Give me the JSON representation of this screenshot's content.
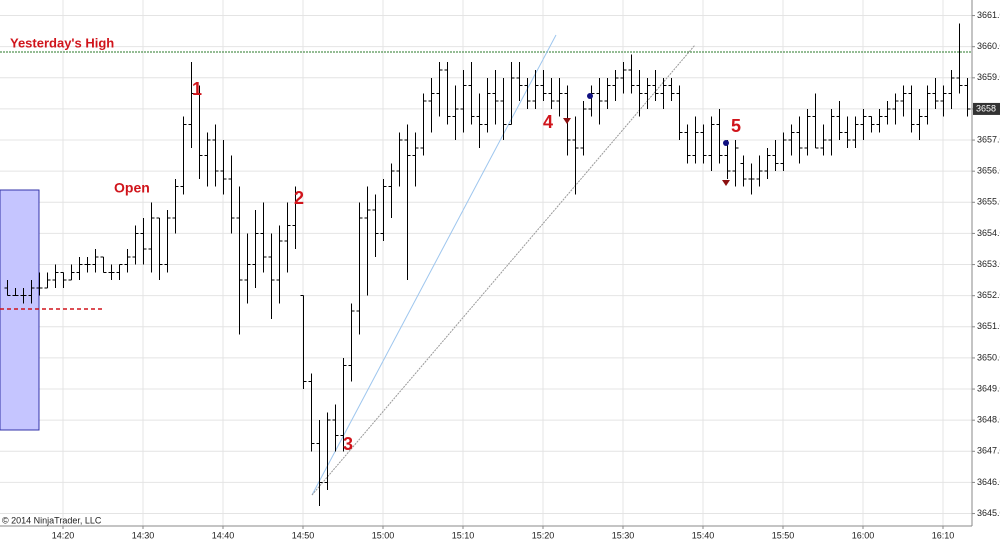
{
  "chart_data": {
    "type": "ohlc",
    "color": "#000000",
    "grid": true,
    "ylim": [
      3644.6,
      3661.5
    ],
    "yticks": [
      {
        "value": 3645,
        "label": "3645.0"
      },
      {
        "value": 3646,
        "label": "3646.0"
      },
      {
        "value": 3647,
        "label": "3647.0"
      },
      {
        "value": 3648,
        "label": "3648.0"
      },
      {
        "value": 3649,
        "label": "3649.0"
      },
      {
        "value": 3650,
        "label": "3650.0"
      },
      {
        "value": 3651,
        "label": "3651.0"
      },
      {
        "value": 3652,
        "label": "3652.0"
      },
      {
        "value": 3653,
        "label": "3653.0"
      },
      {
        "value": 3654,
        "label": "3654.0"
      },
      {
        "value": 3655,
        "label": "3655.0"
      },
      {
        "value": 3656,
        "label": "3656.0"
      },
      {
        "value": 3657,
        "label": "3657.0"
      },
      {
        "value": 3658,
        "label": "3658.0"
      },
      {
        "value": 3659,
        "label": "3659.0"
      },
      {
        "value": 3660,
        "label": "3660.0"
      },
      {
        "value": 3661,
        "label": "3661.0"
      }
    ],
    "xticks": [
      "14:20",
      "14:30",
      "14:40",
      "14:50",
      "15:00",
      "15:10",
      "15:20",
      "15:30",
      "15:40",
      "15:50",
      "16:00",
      "16:10"
    ],
    "last_price": 3658,
    "annotations": [
      "Yesterday's High",
      "Open",
      "1",
      "2",
      "3",
      "4",
      "5"
    ],
    "copyright": "© 2014 NinjaTrader, LLC",
    "x": [
      "14:13",
      "14:14",
      "14:15",
      "14:16",
      "14:17",
      "14:18",
      "14:19",
      "14:20",
      "14:21",
      "14:22",
      "14:23",
      "14:24",
      "14:25",
      "14:26",
      "14:27",
      "14:28",
      "14:29",
      "14:30",
      "14:31",
      "14:32",
      "14:33",
      "14:34",
      "14:35",
      "14:36",
      "14:37",
      "14:38",
      "14:39",
      "14:40",
      "14:41",
      "14:42",
      "14:43",
      "14:44",
      "14:45",
      "14:46",
      "14:47",
      "14:48",
      "14:49",
      "14:50",
      "14:51",
      "14:52",
      "14:53",
      "14:54",
      "14:55",
      "14:56",
      "14:57",
      "14:58",
      "14:59",
      "15:00",
      "15:01",
      "15:02",
      "15:03",
      "15:04",
      "15:05",
      "15:06",
      "15:07",
      "15:08",
      "15:09",
      "15:10",
      "15:11",
      "15:12",
      "15:13",
      "15:14",
      "15:15",
      "15:16",
      "15:17",
      "15:18",
      "15:19",
      "15:20",
      "15:21",
      "15:22",
      "15:23",
      "15:24",
      "15:25",
      "15:26",
      "15:27",
      "15:28",
      "15:29",
      "15:30",
      "15:31",
      "15:32",
      "15:33",
      "15:34",
      "15:35",
      "15:36",
      "15:37",
      "15:38",
      "15:39",
      "15:40",
      "15:41",
      "15:42",
      "15:43",
      "15:44",
      "15:45",
      "15:46",
      "15:47",
      "15:48",
      "15:49",
      "15:50",
      "15:51",
      "15:52",
      "15:53",
      "15:54",
      "15:55",
      "15:56",
      "15:57",
      "15:58",
      "15:59",
      "16:00",
      "16:01",
      "16:02",
      "16:03",
      "16:04",
      "16:05",
      "16:06",
      "16:07",
      "16:08",
      "16:09",
      "16:10",
      "16:11",
      "16:12",
      "16:13"
    ],
    "open": [
      3652.25,
      3652,
      3652,
      3652,
      3652.25,
      3652.25,
      3652.5,
      3652.75,
      3652.5,
      3652.75,
      3653,
      3653,
      3653.25,
      3652.75,
      3652.75,
      3653,
      3653.25,
      3654,
      3653.5,
      3654.5,
      3653,
      3654.5,
      3655.5,
      3657.5,
      3658.5,
      3656.5,
      3657,
      3656,
      3655.75,
      3654.5,
      3652.5,
      3653,
      3654,
      3653.25,
      3652.5,
      3653.75,
      3654.25,
      3652,
      3649.25,
      3647.25,
      3646,
      3648,
      3647.5,
      3649.75,
      3651.5,
      3654.5,
      3654.75,
      3654,
      3655.5,
      3656,
      3657,
      3656.5,
      3656.75,
      3658.25,
      3658.5,
      3659.25,
      3657.75,
      3658,
      3658.75,
      3657.75,
      3657.5,
      3658.5,
      3658.25,
      3657.5,
      3659,
      3658.75,
      3658.25,
      3658.75,
      3658.5,
      3658.25,
      3658.5,
      3657,
      3656.75,
      3658,
      3658.5,
      3658.25,
      3658.75,
      3659,
      3659.25,
      3658.75,
      3658.5,
      3658.75,
      3658.5,
      3658.75,
      3658.5,
      3657.25,
      3656.5,
      3657.25,
      3656.5,
      3657.5,
      3656.5,
      3656,
      3656.25,
      3655.75,
      3655.75,
      3656,
      3656.5,
      3656.25,
      3657,
      3657.25,
      3656.75,
      3657.75,
      3656.75,
      3657,
      3657.75,
      3657.25,
      3657,
      3657.5,
      3657.75,
      3657.5,
      3657.75,
      3658,
      3658.25,
      3658.5,
      3657.5,
      3657.75,
      3658.5,
      3658.25,
      3658.5,
      3659,
      3658.75
    ],
    "high": [
      3652.5,
      3652.25,
      3652.25,
      3652.5,
      3652.75,
      3652.75,
      3653,
      3652.75,
      3653,
      3653.25,
      3653.25,
      3653.5,
      3653.25,
      3653,
      3653,
      3653.5,
      3654.25,
      3654.5,
      3655,
      3654.5,
      3654.75,
      3655.75,
      3657.75,
      3659.5,
      3658.75,
      3657.25,
      3657.5,
      3657,
      3656.5,
      3655.5,
      3654,
      3654.75,
      3655,
      3654,
      3654.25,
      3655,
      3655.5,
      3652,
      3649.5,
      3648,
      3648.25,
      3648.5,
      3650,
      3651.75,
      3655,
      3655.5,
      3655.25,
      3655.75,
      3656.25,
      3657.25,
      3657.5,
      3657.25,
      3658.5,
      3659,
      3659.5,
      3659.5,
      3658.75,
      3659.25,
      3659.5,
      3658.5,
      3659,
      3659.25,
      3659,
      3659.5,
      3659.5,
      3659,
      3659.25,
      3659.25,
      3659,
      3659,
      3658.75,
      3657.75,
      3658.25,
      3658.75,
      3659,
      3659,
      3659.25,
      3659.5,
      3659.75,
      3659.25,
      3659,
      3659.25,
      3659,
      3659,
      3658.75,
      3657.5,
      3657.75,
      3657.5,
      3657.75,
      3658,
      3657,
      3657,
      3656.5,
      3656.25,
      3656.5,
      3656.75,
      3657,
      3657.25,
      3657.5,
      3657.75,
      3658,
      3658.5,
      3657.5,
      3658,
      3658.25,
      3657.75,
      3657.75,
      3658,
      3657.75,
      3658,
      3658.25,
      3658.5,
      3658.75,
      3658.75,
      3658,
      3658.75,
      3659,
      3658.75,
      3659.25,
      3660.75,
      3659
    ],
    "low": [
      3652,
      3652,
      3651.75,
      3651.75,
      3652,
      3652.25,
      3652.25,
      3652.25,
      3652.5,
      3652.5,
      3652.75,
      3652.75,
      3652.75,
      3652.5,
      3652.5,
      3652.75,
      3653,
      3653,
      3652.75,
      3652.5,
      3652.75,
      3654,
      3655.25,
      3656.75,
      3655.75,
      3655.5,
      3655.5,
      3655.25,
      3654,
      3650.75,
      3651.75,
      3652.25,
      3652.75,
      3651.25,
      3651.75,
      3652.75,
      3653.5,
      3649,
      3647,
      3645.25,
      3645.75,
      3647,
      3647,
      3649.25,
      3650.75,
      3652,
      3653.25,
      3653.75,
      3654.5,
      3655.5,
      3652.5,
      3655.5,
      3656.5,
      3657.25,
      3657.75,
      3657.5,
      3657,
      3657.25,
      3657.5,
      3656.75,
      3657.25,
      3657.5,
      3657,
      3657.5,
      3658.25,
      3658,
      3658,
      3658.25,
      3658,
      3657.75,
      3656.5,
      3655.25,
      3656.5,
      3657.75,
      3657.5,
      3658,
      3658.25,
      3658.5,
      3658.5,
      3657.75,
      3658,
      3658.25,
      3658,
      3658.25,
      3657,
      3656.25,
      3656.25,
      3656.25,
      3656,
      3656.25,
      3655.75,
      3655.5,
      3655.5,
      3655.25,
      3655.5,
      3655.75,
      3656,
      3656,
      3656.5,
      3656.25,
      3656.5,
      3656.75,
      3656.5,
      3656.5,
      3657,
      3656.75,
      3656.75,
      3657,
      3657.25,
      3657.25,
      3657.5,
      3657.5,
      3657.75,
      3657.25,
      3657,
      3657.5,
      3658,
      3657.75,
      3658,
      3658.5,
      3657.75
    ],
    "close": [
      3652,
      3652,
      3652,
      3652.25,
      3652.25,
      3652.5,
      3652.75,
      3652.5,
      3652.75,
      3653,
      3653,
      3653.25,
      3652.75,
      3652.75,
      3653,
      3653.25,
      3654,
      3653.5,
      3654.5,
      3653,
      3654.5,
      3655.5,
      3657.5,
      3658.5,
      3656.5,
      3657,
      3656,
      3655.75,
      3654.5,
      3652.5,
      3653,
      3654,
      3653.25,
      3652.5,
      3653.75,
      3654.25,
      3655,
      3649.25,
      3647.25,
      3646,
      3648,
      3647.5,
      3649.75,
      3651.5,
      3654.5,
      3654.75,
      3654,
      3655.5,
      3656,
      3657,
      3656.5,
      3656.75,
      3658.25,
      3658.5,
      3659.25,
      3657.75,
      3658,
      3658.75,
      3657.75,
      3657.5,
      3658.5,
      3658.25,
      3657.5,
      3659,
      3658.75,
      3658.25,
      3658.75,
      3658.5,
      3658.25,
      3658.5,
      3657,
      3656.75,
      3658,
      3658.5,
      3658.25,
      3658.75,
      3659,
      3659.25,
      3658.75,
      3658.5,
      3658.75,
      3658.5,
      3658.75,
      3658.5,
      3657.25,
      3656.5,
      3657.25,
      3656.5,
      3657.5,
      3656.5,
      3656,
      3656.75,
      3655.75,
      3655.75,
      3656,
      3656.5,
      3656.25,
      3657,
      3657.25,
      3656.75,
      3657.75,
      3656.75,
      3657,
      3657.75,
      3657.25,
      3657,
      3657.5,
      3657.75,
      3657.5,
      3657.75,
      3658,
      3658.25,
      3658.5,
      3657.5,
      3657.75,
      3658.5,
      3658.25,
      3658.5,
      3659,
      3658.75,
      3658
    ]
  }
}
